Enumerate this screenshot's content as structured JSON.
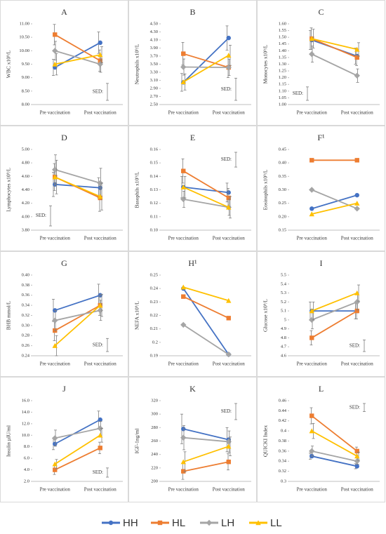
{
  "chart_data": [
    {
      "type": "line",
      "title": "A",
      "y_label": "WBC x10⁹/L",
      "categories": [
        "Pre vaccination",
        "Post vaccination"
      ],
      "ylim": [
        8,
        11
      ],
      "yticks": [
        {
          "value": 8,
          "label": "8.00"
        },
        {
          "value": 8.5,
          "label": "8.50"
        },
        {
          "value": 9,
          "label": "9.00"
        },
        {
          "value": 9.5,
          "label": "9.50"
        },
        {
          "value": 10,
          "label": "10.00"
        },
        {
          "value": 10.5,
          "label": "10.50"
        },
        {
          "value": 11,
          "label": "11.00"
        }
      ],
      "series": [
        {
          "name": "HH",
          "color": "#4472c4",
          "marker": "circle",
          "values": [
            9.38,
            10.3
          ],
          "errors": [
            0.3,
            0.4
          ]
        },
        {
          "name": "HL",
          "color": "#ed7d31",
          "marker": "square",
          "values": [
            10.6,
            9.63
          ],
          "errors": [
            0.38,
            0.4
          ]
        },
        {
          "name": "LH",
          "color": "#a5a5a5",
          "marker": "diamond",
          "values": [
            10,
            9.5
          ],
          "errors": [
            0.35,
            0.3
          ]
        },
        {
          "name": "LL",
          "color": "#ffc000",
          "marker": "triangle",
          "values": [
            9.5,
            9.85
          ],
          "errors": [
            0.4,
            0.3
          ]
        }
      ],
      "sed_label": "SED:",
      "sed": 0.63,
      "sed_corner": "bottom-right"
    },
    {
      "type": "line",
      "title": "B",
      "y_label": "Neutrophils x10⁹/L",
      "categories": [
        "Pre vaccination",
        "Post vaccination"
      ],
      "ylim": [
        2.5,
        4.5
      ],
      "yticks": [
        {
          "value": 2.5,
          "label": "2.50"
        },
        {
          "value": 2.7,
          "label": "2.70"
        },
        {
          "value": 2.9,
          "label": "2.90"
        },
        {
          "value": 3.1,
          "label": "3.10"
        },
        {
          "value": 3.3,
          "label": "3.30"
        },
        {
          "value": 3.5,
          "label": "3.50"
        },
        {
          "value": 3.7,
          "label": "3.70"
        },
        {
          "value": 3.9,
          "label": "3.90"
        },
        {
          "value": 4.1,
          "label": "4.10"
        },
        {
          "value": 4.3,
          "label": "4.30"
        },
        {
          "value": 4.5,
          "label": "4.50"
        }
      ],
      "series": [
        {
          "name": "HH",
          "color": "#4472c4",
          "marker": "circle",
          "values": [
            3.05,
            4.15
          ],
          "errors": [
            0.22,
            0.3
          ]
        },
        {
          "name": "HL",
          "color": "#ed7d31",
          "marker": "square",
          "values": [
            3.76,
            3.42
          ],
          "errors": [
            0.28,
            0.25
          ]
        },
        {
          "name": "LH",
          "color": "#a5a5a5",
          "marker": "diamond",
          "values": [
            3.43,
            3.42
          ],
          "errors": [
            0.2,
            0.2
          ]
        },
        {
          "name": "LL",
          "color": "#ffc000",
          "marker": "triangle",
          "values": [
            3.06,
            3.72
          ],
          "errors": [
            0.2,
            0.25
          ]
        }
      ],
      "sed_label": "SED:",
      "sed": 0.55,
      "sed_corner": "bottom-right"
    },
    {
      "type": "line",
      "title": "C",
      "y_label": "Monocytes x10⁹/L",
      "categories": [
        "Pre vaccination",
        "Post vaccination"
      ],
      "ylim": [
        1,
        1.6
      ],
      "yticks": [
        {
          "value": 1,
          "label": "1.00"
        },
        1.05,
        {
          "value": 1.1,
          "label": "1.10"
        },
        1.15,
        {
          "value": 1.2,
          "label": "1.20"
        },
        1.25,
        {
          "value": 1.3,
          "label": "1.30"
        },
        1.35,
        {
          "value": 1.4,
          "label": "1.40"
        },
        1.45,
        {
          "value": 1.5,
          "label": "1.50"
        },
        1.55,
        {
          "value": 1.6,
          "label": "1.60"
        }
      ],
      "series": [
        {
          "name": "HH",
          "color": "#4472c4",
          "marker": "circle",
          "values": [
            1.48,
            1.36
          ],
          "errors": [
            0.07,
            0.06
          ]
        },
        {
          "name": "HL",
          "color": "#ed7d31",
          "marker": "square",
          "values": [
            1.49,
            1.35
          ],
          "errors": [
            0.08,
            0.06
          ]
        },
        {
          "name": "LH",
          "color": "#a5a5a5",
          "marker": "diamond",
          "values": [
            1.375,
            1.215
          ],
          "errors": [
            0.06,
            0.05
          ]
        },
        {
          "name": "LL",
          "color": "#ffc000",
          "marker": "triangle",
          "values": [
            1.49,
            1.41
          ],
          "errors": [
            0.07,
            0.05
          ]
        }
      ],
      "sed_label": "SED:",
      "sed": 0.1,
      "sed_corner": "bottom-left"
    },
    {
      "type": "line",
      "title": "D",
      "y_label": "Lymphocytes x10⁹/L",
      "categories": [
        "Pre vaccination",
        "Post vaccination"
      ],
      "ylim": [
        3.8,
        5
      ],
      "yticks": [
        {
          "value": 3.8,
          "label": "3.80"
        },
        {
          "value": 4,
          "label": "4.00"
        },
        {
          "value": 4.2,
          "label": "4.20"
        },
        {
          "value": 4.4,
          "label": "4.40"
        },
        {
          "value": 4.6,
          "label": "4.60"
        },
        {
          "value": 4.8,
          "label": "4.80"
        },
        {
          "value": 5,
          "label": "5.00"
        }
      ],
      "series": [
        {
          "name": "HH",
          "color": "#4472c4",
          "marker": "circle",
          "values": [
            4.48,
            4.43
          ],
          "errors": [
            0.18,
            0.15
          ]
        },
        {
          "name": "HL",
          "color": "#ed7d31",
          "marker": "square",
          "values": [
            4.59,
            4.28
          ],
          "errors": [
            0.2,
            0.2
          ]
        },
        {
          "name": "LH",
          "color": "#a5a5a5",
          "marker": "diamond",
          "values": [
            4.7,
            4.5
          ],
          "errors": [
            0.22,
            0.22
          ]
        },
        {
          "name": "LL",
          "color": "#ffc000",
          "marker": "triangle",
          "values": [
            4.59,
            4.3
          ],
          "errors": [
            0.25,
            0.2
          ]
        }
      ],
      "sed_label": "SED:",
      "sed": 0.3,
      "sed_corner": "bottom-left"
    },
    {
      "type": "line",
      "title": "E",
      "y_label": "Basophils x10⁹/L",
      "categories": [
        "Pre vaccination",
        "Post vaccination"
      ],
      "ylim": [
        0.1,
        0.16
      ],
      "yticks": [
        {
          "value": 0.1,
          "label": "0.10"
        },
        0.11,
        0.12,
        0.13,
        0.14,
        0.15,
        {
          "value": 0.16,
          "label": "0.16"
        }
      ],
      "series": [
        {
          "name": "HH",
          "color": "#4472c4",
          "marker": "circle",
          "values": [
            0.132,
            0.128
          ],
          "errors": [
            0.008,
            0.007
          ]
        },
        {
          "name": "HL",
          "color": "#ed7d31",
          "marker": "square",
          "values": [
            0.144,
            0.124
          ],
          "errors": [
            0.009,
            0.007
          ]
        },
        {
          "name": "LH",
          "color": "#a5a5a5",
          "marker": "diamond",
          "values": [
            0.123,
            0.117
          ],
          "errors": [
            0.006,
            0.006
          ]
        },
        {
          "name": "LL",
          "color": "#ffc000",
          "marker": "triangle",
          "values": [
            0.132,
            0.117
          ],
          "errors": [
            0.008,
            0.008
          ]
        }
      ],
      "sed_label": "SED:",
      "sed": 0.011,
      "sed_corner": "top-right"
    },
    {
      "type": "line",
      "title": "F¹",
      "y_label": "Eosinophils x10⁹/L",
      "categories": [
        "Pre vaccination",
        "Post vaccination"
      ],
      "ylim": [
        0.15,
        0.45
      ],
      "yticks": [
        0.15,
        {
          "value": 0.2,
          "label": "0.20"
        },
        0.25,
        {
          "value": 0.3,
          "label": "0.30"
        },
        0.35,
        {
          "value": 0.4,
          "label": "0.40"
        },
        0.45
      ],
      "series": [
        {
          "name": "HH",
          "color": "#4472c4",
          "marker": "circle",
          "values": [
            0.23,
            0.28
          ]
        },
        {
          "name": "HL",
          "color": "#ed7d31",
          "marker": "square",
          "values": [
            0.41,
            0.41
          ]
        },
        {
          "name": "LH",
          "color": "#a5a5a5",
          "marker": "diamond",
          "values": [
            0.3,
            0.23
          ]
        },
        {
          "name": "LL",
          "color": "#ffc000",
          "marker": "triangle",
          "values": [
            0.21,
            0.25
          ]
        }
      ]
    },
    {
      "type": "line",
      "title": "G",
      "y_label": "BHB mmol/L",
      "categories": [
        "Pre vaccination",
        "Post vaccination"
      ],
      "ylim": [
        0.24,
        0.4
      ],
      "yticks": [
        0.24,
        0.26,
        0.28,
        {
          "value": 0.3,
          "label": "0.30"
        },
        0.32,
        0.34,
        0.36,
        0.38,
        {
          "value": 0.4,
          "label": "0.40"
        }
      ],
      "series": [
        {
          "name": "HH",
          "color": "#4472c4",
          "marker": "circle",
          "values": [
            0.33,
            0.36
          ],
          "errors": [
            0.022,
            0.022
          ]
        },
        {
          "name": "HL",
          "color": "#ed7d31",
          "marker": "square",
          "values": [
            0.29,
            0.34
          ],
          "errors": [
            0.02,
            0.02
          ]
        },
        {
          "name": "LH",
          "color": "#a5a5a5",
          "marker": "diamond",
          "values": [
            0.31,
            0.33
          ],
          "errors": [
            0.02,
            0.02
          ]
        },
        {
          "name": "LL",
          "color": "#ffc000",
          "marker": "triangle",
          "values": [
            0.26,
            0.34
          ],
          "errors": [
            0.02,
            0.022
          ]
        }
      ],
      "sed_label": "SED:",
      "sed": 0.026,
      "sed_corner": "bottom-right"
    },
    {
      "type": "line",
      "title": "H¹",
      "y_label": "NEFA x10⁹/L",
      "categories": [
        "Pre vaccination",
        "Post vaccination"
      ],
      "ylim": [
        0.19,
        0.25
      ],
      "yticks": [
        0.19,
        0.2,
        0.21,
        0.22,
        0.23,
        0.24,
        0.25
      ],
      "series": [
        {
          "name": "HH",
          "color": "#4472c4",
          "marker": "circle",
          "values": [
            0.24,
            0.191
          ]
        },
        {
          "name": "HL",
          "color": "#ed7d31",
          "marker": "square",
          "values": [
            0.234,
            0.218
          ]
        },
        {
          "name": "LH",
          "color": "#a5a5a5",
          "marker": "diamond",
          "values": [
            0.213,
            0.191
          ]
        },
        {
          "name": "LL",
          "color": "#ffc000",
          "marker": "triangle",
          "values": [
            0.241,
            0.231
          ]
        }
      ]
    },
    {
      "type": "line",
      "title": "I",
      "y_label": "Glucose x10⁹/L",
      "categories": [
        "Pre vaccination",
        "Post vaccination"
      ],
      "ylim": [
        4.6,
        5.5
      ],
      "yticks": [
        4.6,
        4.7,
        4.8,
        4.9,
        5,
        5.1,
        5.2,
        5.3,
        5.4,
        5.5
      ],
      "series": [
        {
          "name": "HH",
          "color": "#4472c4",
          "marker": "circle",
          "values": [
            5.1,
            5.1
          ],
          "errors": [
            0.1,
            0.09
          ]
        },
        {
          "name": "HL",
          "color": "#ed7d31",
          "marker": "square",
          "values": [
            4.8,
            5.1
          ],
          "errors": [
            0.08,
            0.09
          ]
        },
        {
          "name": "LH",
          "color": "#a5a5a5",
          "marker": "diamond",
          "values": [
            5,
            5.2
          ],
          "errors": [
            0.1,
            0.09
          ]
        },
        {
          "name": "LL",
          "color": "#ffc000",
          "marker": "triangle",
          "values": [
            5.1,
            5.3
          ],
          "errors": [
            0.1,
            0.09
          ]
        }
      ],
      "sed_label": "SED:",
      "sed": 0.13,
      "sed_corner": "bottom-right"
    },
    {
      "type": "line",
      "title": "J",
      "y_label": "Insulin µIU/ml",
      "categories": [
        "Pre vaccination",
        "Post vaccination"
      ],
      "ylim": [
        2,
        16
      ],
      "yticks": [
        {
          "value": 2,
          "label": "2.0"
        },
        {
          "value": 4,
          "label": "4.0"
        },
        {
          "value": 6,
          "label": "6.0"
        },
        {
          "value": 8,
          "label": "8.0"
        },
        {
          "value": 10,
          "label": "10.0"
        },
        {
          "value": 12,
          "label": "12.0"
        },
        {
          "value": 14,
          "label": "14.0"
        },
        {
          "value": 16,
          "label": "16.0"
        }
      ],
      "series": [
        {
          "name": "HH",
          "color": "#4472c4",
          "marker": "circle",
          "values": [
            8.5,
            12.7
          ],
          "errors": [
            1,
            1.5
          ]
        },
        {
          "name": "HL",
          "color": "#ed7d31",
          "marker": "square",
          "values": [
            4,
            7.8
          ],
          "errors": [
            0.8,
            1
          ]
        },
        {
          "name": "LH",
          "color": "#a5a5a5",
          "marker": "diamond",
          "values": [
            9.5,
            11.2
          ],
          "errors": [
            1.4,
            1.2
          ]
        },
        {
          "name": "LL",
          "color": "#ffc000",
          "marker": "triangle",
          "values": [
            5,
            10
          ],
          "errors": [
            0.8,
            1.2
          ]
        }
      ],
      "sed_label": "SED:",
      "sed": 1.6,
      "sed_corner": "bottom-right"
    },
    {
      "type": "line",
      "title": "K",
      "y_label": "IGF-1ng/ml",
      "categories": [
        "Pre vaccination",
        "Post vaccination"
      ],
      "ylim": [
        200,
        320
      ],
      "yticks": [
        200,
        220,
        240,
        260,
        280,
        300,
        320
      ],
      "series": [
        {
          "name": "HH",
          "color": "#4472c4",
          "marker": "circle",
          "values": [
            278,
            262
          ],
          "errors": [
            22,
            18
          ]
        },
        {
          "name": "HL",
          "color": "#ed7d31",
          "marker": "square",
          "values": [
            215,
            229
          ],
          "errors": [
            12,
            12
          ]
        },
        {
          "name": "LH",
          "color": "#a5a5a5",
          "marker": "diamond",
          "values": [
            265,
            259
          ],
          "errors": [
            18,
            16
          ]
        },
        {
          "name": "LL",
          "color": "#ffc000",
          "marker": "triangle",
          "values": [
            229,
            252
          ],
          "errors": [
            15,
            14
          ]
        }
      ],
      "sed_label": "SED:",
      "sed": 24,
      "sed_corner": "top-right"
    },
    {
      "type": "line",
      "title": "L",
      "y_label": "QUICKI Index",
      "categories": [
        "Pre vaccination",
        "Post vaccination"
      ],
      "ylim": [
        0.3,
        0.46
      ],
      "yticks": [
        0.3,
        0.32,
        0.34,
        0.36,
        0.38,
        0.4,
        0.42,
        0.44,
        0.46
      ],
      "series": [
        {
          "name": "HH",
          "color": "#4472c4",
          "marker": "circle",
          "values": [
            0.35,
            0.33
          ],
          "errors": [
            0.006,
            0.005
          ]
        },
        {
          "name": "HL",
          "color": "#ed7d31",
          "marker": "square",
          "values": [
            0.43,
            0.36
          ],
          "errors": [
            0.016,
            0.008
          ]
        },
        {
          "name": "LH",
          "color": "#a5a5a5",
          "marker": "diamond",
          "values": [
            0.36,
            0.34
          ],
          "errors": [
            0.01,
            0.006
          ]
        },
        {
          "name": "LL",
          "color": "#ffc000",
          "marker": "triangle",
          "values": [
            0.4,
            0.35
          ],
          "errors": [
            0.015,
            0.008
          ]
        }
      ],
      "sed_label": "SED:",
      "sed": 0.016,
      "sed_corner": "top-right"
    }
  ]
}
